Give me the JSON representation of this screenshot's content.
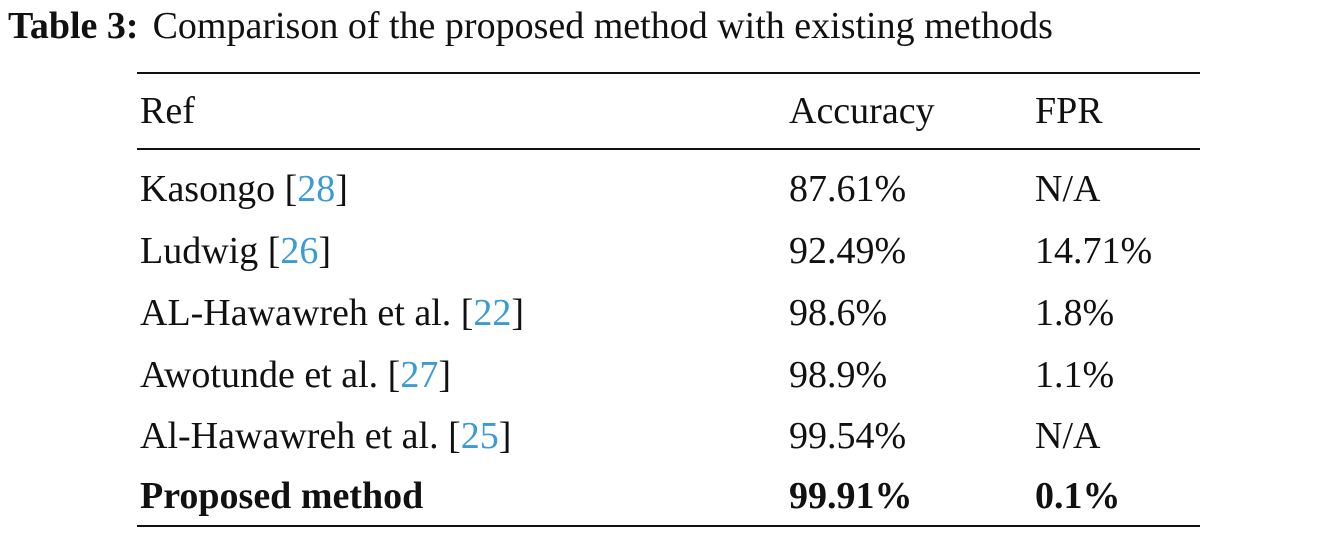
{
  "caption": {
    "label": "Table 3:",
    "text": "Comparison of the proposed method with existing methods"
  },
  "cite": {
    "open": "[",
    "close": "]"
  },
  "table": {
    "header": [
      "Ref",
      "Accuracy",
      "FPR"
    ],
    "rows": [
      {
        "ref": "Kasongo",
        "cite": "28",
        "accuracy": "87.61%",
        "fpr": "N/A"
      },
      {
        "ref": "Ludwig",
        "cite": "26",
        "accuracy": "92.49%",
        "fpr": "14.71%"
      },
      {
        "ref": "AL-Hawawreh et al.",
        "cite": "22",
        "accuracy": "98.6%",
        "fpr": "1.8%"
      },
      {
        "ref": "Awotunde et al.",
        "cite": "27",
        "accuracy": "98.9%",
        "fpr": "1.1%"
      },
      {
        "ref": "Al-Hawawreh et al.",
        "cite": "25",
        "accuracy": "99.54%",
        "fpr": "N/A"
      }
    ],
    "final_row": {
      "ref": "Proposed method",
      "accuracy": "99.91%",
      "fpr": "0.1%"
    }
  }
}
